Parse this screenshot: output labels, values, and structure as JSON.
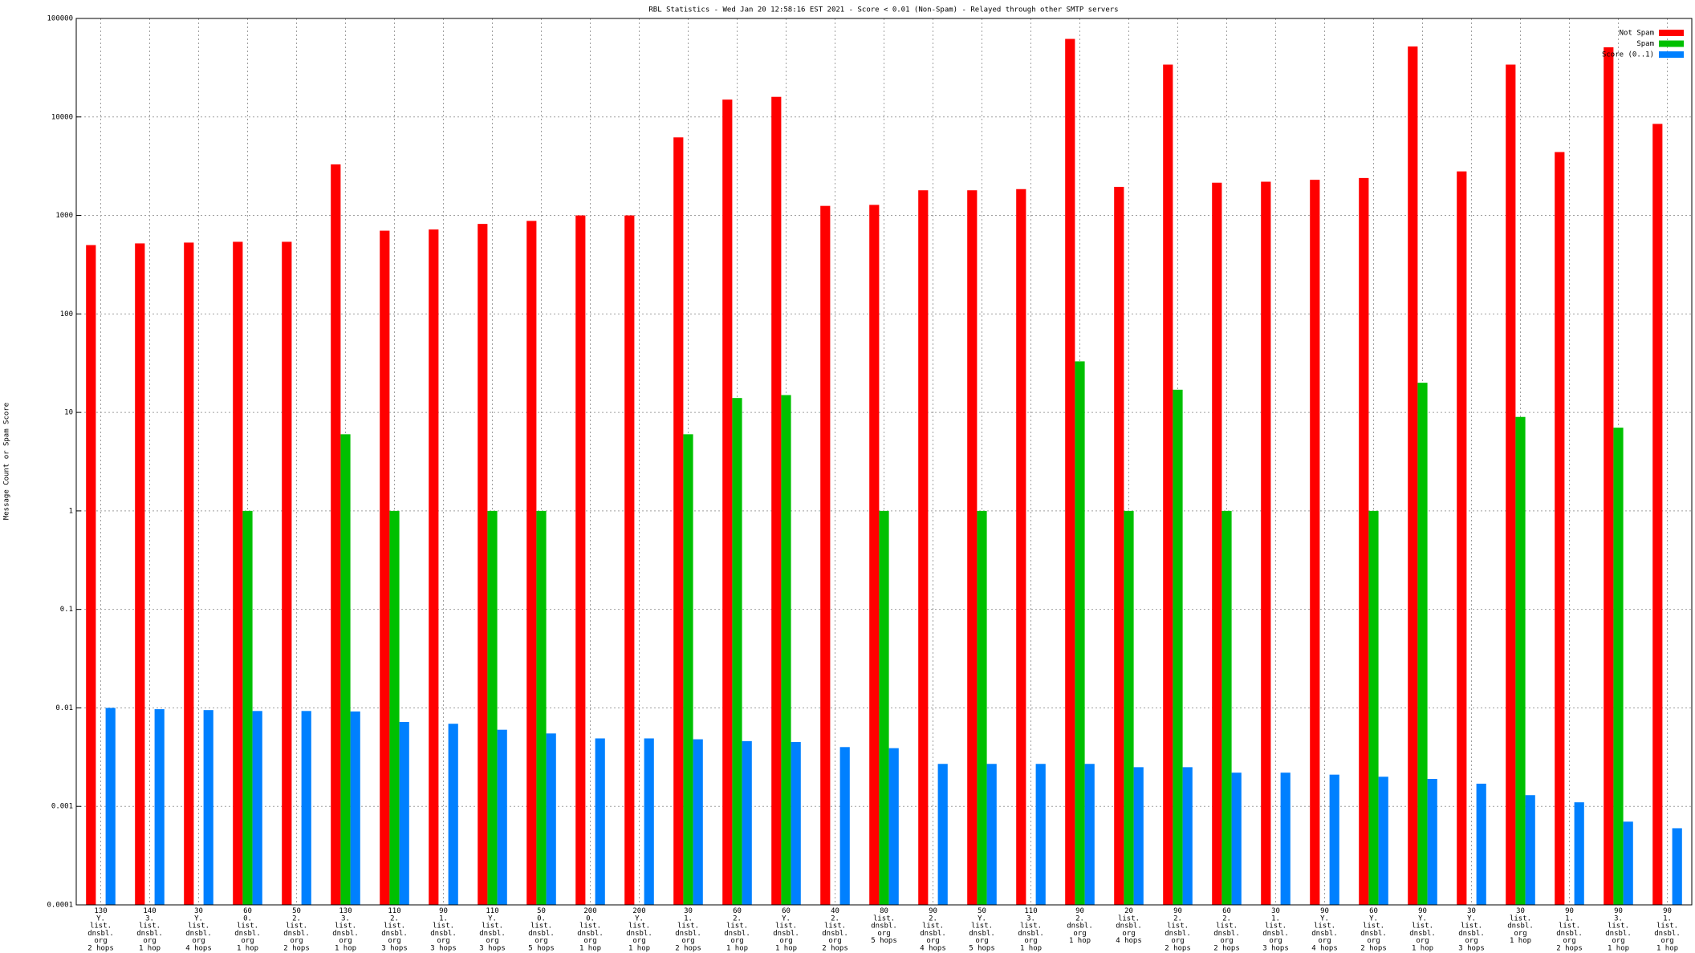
{
  "chart_data": {
    "type": "bar",
    "title": "RBL Statistics - Wed Jan 20 12:58:16 EST 2021 - Score < 0.01 (Non-Spam) - Relayed through other SMTP servers",
    "y_label": "Message Count or Spam Score",
    "log_scale": true,
    "grid": true,
    "legend": "upper right",
    "ylim": [
      0.0001,
      100000
    ],
    "yticks": [
      0.0001,
      0.001,
      0.01,
      0.1,
      1,
      10,
      100,
      1000,
      10000,
      100000
    ],
    "categories": [
      "130\nY.\nlist.\ndnsbl.\norg\n2 hops",
      "140\n3.\nlist.\ndnsbl.\norg\n1 hop",
      "30\nY.\nlist.\ndnsbl.\norg\n4 hops",
      "60\n0.\nlist.\ndnsbl.\norg\n1 hop",
      "50\n2.\nlist.\ndnsbl.\norg\n2 hops",
      "130\n3.\nlist.\ndnsbl.\norg\n1 hop",
      "110\n2.\nlist.\ndnsbl.\norg\n3 hops",
      "90\n1.\nlist.\ndnsbl.\norg\n3 hops",
      "110\nY.\nlist.\ndnsbl.\norg\n3 hops",
      "50\n0.\nlist.\ndnsbl.\norg\n5 hops",
      "200\n0.\nlist.\ndnsbl.\norg\n1 hop",
      "200\nY.\nlist.\ndnsbl.\norg\n1 hop",
      "30\n1.\nlist.\ndnsbl.\norg\n2 hops",
      "60\n2.\nlist.\ndnsbl.\norg\n1 hop",
      "60\nY.\nlist.\ndnsbl.\norg\n1 hop",
      "40\n2.\nlist.\ndnsbl.\norg\n2 hops",
      "80\nlist.\ndnsbl.\norg\n5 hops",
      "90\n2.\nlist.\ndnsbl.\norg\n4 hops",
      "50\nY.\nlist.\ndnsbl.\norg\n5 hops",
      "110\n3.\nlist.\ndnsbl.\norg\n1 hop",
      "90\n2.\ndnsbl.\norg\n1 hop",
      "20\nlist.\ndnsbl.\norg\n4 hops",
      "90\n2.\nlist.\ndnsbl.\norg\n2 hops",
      "60\n2.\nlist.\ndnsbl.\norg\n2 hops",
      "30\n1.\nlist.\ndnsbl.\norg\n3 hops",
      "90\nY.\nlist.\ndnsbl.\norg\n4 hops",
      "60\nY.\nlist.\ndnsbl.\norg\n2 hops",
      "90\nY.\nlist.\ndnsbl.\norg\n1 hop",
      "30\nY.\nlist.\ndnsbl.\norg\n3 hops",
      "30\nlist.\ndnsbl.\norg\n1 hop",
      "90\n1.\nlist.\ndnsbl.\norg\n2 hops",
      "90\n3.\nlist.\ndnsbl.\norg\n1 hop",
      "90\n1.\nlist.\ndnsbl.\norg\n1 hop"
    ],
    "series": [
      {
        "name": "Not Spam",
        "color": "#ff0000",
        "values": [
          500,
          520,
          530,
          540,
          540,
          3300,
          700,
          720,
          820,
          880,
          1000,
          1000,
          6200,
          15000,
          16000,
          1250,
          1280,
          1800,
          1800,
          1850,
          62000,
          1950,
          34000,
          2150,
          2200,
          2300,
          2400,
          52000,
          2800,
          34000,
          4400,
          51000,
          8500
        ]
      },
      {
        "name": "Spam",
        "color": "#00c000",
        "values": [
          null,
          null,
          null,
          1,
          null,
          6,
          1,
          null,
          1,
          1,
          null,
          null,
          6,
          14,
          15,
          null,
          1,
          null,
          1,
          null,
          33,
          1,
          17,
          1,
          null,
          null,
          1,
          20,
          null,
          9,
          null,
          7,
          null
        ]
      },
      {
        "name": "Score (0..1)",
        "color": "#0080ff",
        "values": [
          0.01,
          0.0097,
          0.0095,
          0.0093,
          0.0093,
          0.0092,
          0.0072,
          0.0069,
          0.006,
          0.0055,
          0.0049,
          0.0049,
          0.0048,
          0.0046,
          0.0045,
          0.004,
          0.0039,
          0.0027,
          0.0027,
          0.0027,
          0.0027,
          0.0025,
          0.0025,
          0.0022,
          0.0022,
          0.0021,
          0.002,
          0.0019,
          0.0017,
          0.0013,
          0.0011,
          0.0007,
          0.0006
        ]
      }
    ]
  }
}
